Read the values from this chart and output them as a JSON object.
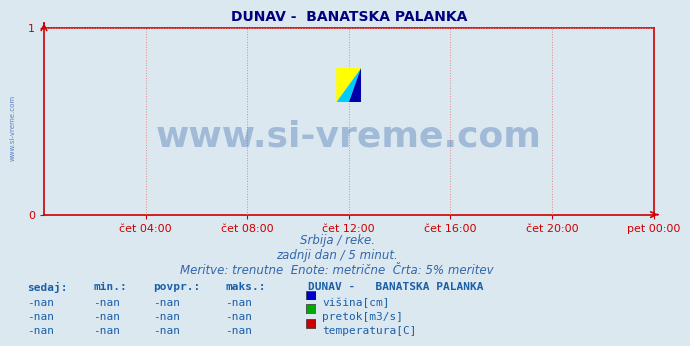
{
  "title": "DUNAV -  BANATSKA PALANKA",
  "title_color": "#000080",
  "title_fontsize": 10,
  "bg_color": "#dce8f0",
  "plot_bg_color": "#dce8f0",
  "xlabel_ticks": [
    "čet 04:00",
    "čet 08:00",
    "čet 12:00",
    "čet 16:00",
    "čet 20:00",
    "pet 00:00"
  ],
  "xlabel_tick_positions": [
    0.1667,
    0.3333,
    0.5,
    0.6667,
    0.8333,
    1.0
  ],
  "ylim": [
    0,
    1
  ],
  "xlim": [
    0,
    1
  ],
  "yticks": [
    0,
    1
  ],
  "grid_color": "#dd8888",
  "grid_linestyle": ":",
  "axis_color": "#cc0000",
  "watermark_text": "www.si-vreme.com",
  "watermark_color": "#3366aa",
  "watermark_alpha": 0.35,
  "watermark_fontsize": 26,
  "left_label": "www.si-vreme.com",
  "left_label_color": "#2255aa",
  "sub1": "Srbija / reke.",
  "sub2": "zadnji dan / 5 minut.",
  "sub3": "Meritve: trenutne  Enote: metrične  Črta: 5% meritev",
  "sub_color": "#3366aa",
  "sub_fontsize": 8.5,
  "table_header": [
    "sedaj:",
    "min.:",
    "povpr.:",
    "maks.:"
  ],
  "table_value": "-nan",
  "legend_title": "DUNAV -   BANATSKA PALANKA",
  "legend_items": [
    {
      "label": "višina[cm]",
      "color": "#0000cc"
    },
    {
      "label": "pretok[m3/s]",
      "color": "#00aa00"
    },
    {
      "label": "temperatura[C]",
      "color": "#cc0000"
    }
  ],
  "table_color": "#1a5fa8",
  "table_fontsize": 8,
  "logo_colors": [
    "#ffff00",
    "#00ccff",
    "#0000aa"
  ]
}
